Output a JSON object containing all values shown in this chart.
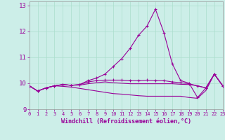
{
  "xlabel": "Windchill (Refroidissement éolien,°C)",
  "bg_color": "#cceee8",
  "line_color": "#990099",
  "grid_color": "#aaddcc",
  "x": [
    0,
    1,
    2,
    3,
    4,
    5,
    6,
    7,
    8,
    9,
    10,
    11,
    12,
    13,
    14,
    15,
    16,
    17,
    18,
    19,
    20,
    21,
    22,
    23
  ],
  "line_peak": [
    9.9,
    9.7,
    9.82,
    9.9,
    9.95,
    9.92,
    9.95,
    10.1,
    10.2,
    10.35,
    10.65,
    10.95,
    11.35,
    11.85,
    12.2,
    12.85,
    11.95,
    10.75,
    10.1,
    10.0,
    9.45,
    9.82,
    10.35,
    9.9
  ],
  "line_flat": [
    9.9,
    9.7,
    9.82,
    9.9,
    9.95,
    9.92,
    9.95,
    10.05,
    10.1,
    10.12,
    10.12,
    10.12,
    10.1,
    10.1,
    10.12,
    10.1,
    10.1,
    10.05,
    10.02,
    9.98,
    9.9,
    9.82,
    10.35,
    9.9
  ],
  "line_low": [
    9.9,
    9.7,
    9.82,
    9.9,
    9.88,
    9.85,
    9.8,
    9.75,
    9.7,
    9.65,
    9.6,
    9.58,
    9.55,
    9.52,
    9.5,
    9.5,
    9.5,
    9.5,
    9.5,
    9.45,
    9.42,
    9.72,
    10.35,
    9.9
  ],
  "line_mid": [
    9.9,
    9.7,
    9.82,
    9.9,
    9.95,
    9.92,
    9.93,
    9.98,
    10.02,
    10.05,
    10.02,
    10.0,
    9.98,
    9.98,
    9.98,
    9.98,
    9.98,
    9.98,
    9.96,
    9.95,
    9.9,
    9.82,
    10.35,
    9.9
  ],
  "ylim": [
    9.0,
    13.15
  ],
  "xlim": [
    0,
    23
  ],
  "yticks": [
    9,
    10,
    11,
    12,
    13
  ],
  "xticks": [
    0,
    1,
    2,
    3,
    4,
    5,
    6,
    7,
    8,
    9,
    10,
    11,
    12,
    13,
    14,
    15,
    16,
    17,
    18,
    19,
    20,
    21,
    22,
    23
  ]
}
